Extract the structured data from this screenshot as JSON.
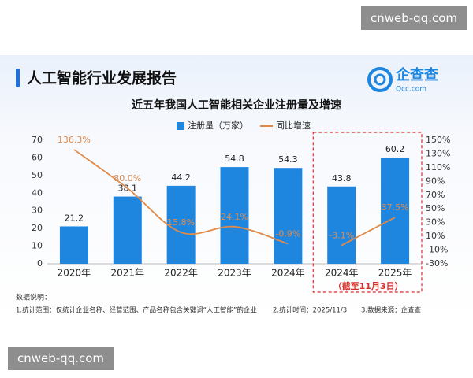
{
  "watermark": "cnweb-qq.com",
  "header": {
    "title": "人工智能行业发展报告",
    "logo": "企查查",
    "logo_sub": "Qcc.com"
  },
  "chart_data": {
    "type": "bar",
    "title": "近五年我国人工智能相关企业注册量及增速",
    "categories": [
      "2020年",
      "2021年",
      "2022年",
      "2023年",
      "2024年",
      "2024年",
      "2025年"
    ],
    "series": [
      {
        "name": "注册量（万家）",
        "color": "#1f86e0",
        "values": [
          21.2,
          38.1,
          44.2,
          54.8,
          54.3,
          43.8,
          60.2
        ]
      },
      {
        "name": "同比增速",
        "type": "line",
        "axis": "y2",
        "color": "#e08a4a",
        "values": [
          136.3,
          80.0,
          15.8,
          24.1,
          -0.9,
          -3.1,
          37.5
        ],
        "value_labels": [
          "136.3%",
          "80.0%",
          "15.8%",
          "24.1%",
          "-0.9%",
          "-3.1%",
          "37.5%"
        ]
      }
    ],
    "ylim": [
      0,
      70
    ],
    "yticks": [
      0,
      10,
      20,
      30,
      40,
      50,
      60,
      70
    ],
    "y2lim": [
      -30,
      150
    ],
    "y2ticks": [
      {
        "value": -30,
        "label": "-30%"
      },
      {
        "value": -10,
        "label": "-10%"
      },
      {
        "value": 10,
        "label": "10%"
      },
      {
        "value": 30,
        "label": "30%"
      },
      {
        "value": 50,
        "label": "50%"
      },
      {
        "value": 70,
        "label": "70%"
      },
      {
        "value": 90,
        "label": "90%"
      },
      {
        "value": 110,
        "label": "110%"
      },
      {
        "value": 130,
        "label": "130%"
      },
      {
        "value": 150,
        "label": "150%"
      }
    ],
    "highlight": {
      "start": 5,
      "label": "（截至11月3日）",
      "color": "#d9302c"
    }
  },
  "notes": {
    "title": "数据说明：",
    "items": [
      "1.统计范围：仅统计企业名称、经营范围、产品名称包含关键词“人工智能”的企业",
      "2.统计时间：2025/11/3",
      "3.数据来源：企查查"
    ]
  }
}
